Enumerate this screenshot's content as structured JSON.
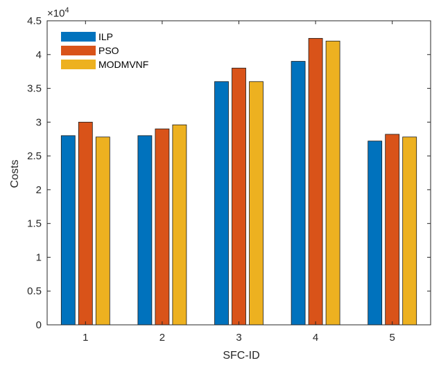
{
  "chart_data": {
    "type": "bar",
    "categories": [
      "1",
      "2",
      "3",
      "4",
      "5"
    ],
    "series": [
      {
        "name": "ILP",
        "values": [
          28000,
          28000,
          36000,
          39000,
          27200
        ],
        "color": "#0072BD"
      },
      {
        "name": "PSO",
        "values": [
          30000,
          29000,
          38000,
          42400,
          28200
        ],
        "color": "#D95319"
      },
      {
        "name": "MODMVNF",
        "values": [
          27800,
          29600,
          36000,
          42000,
          27800
        ],
        "color": "#EDB120"
      }
    ],
    "xlabel": "SFC-ID",
    "ylabel": "Costs",
    "ylim": [
      0,
      45000
    ],
    "yticks": [
      0,
      5000,
      10000,
      15000,
      20000,
      25000,
      30000,
      35000,
      40000,
      45000
    ],
    "ytick_labels": [
      "0",
      "0.5",
      "1",
      "1.5",
      "2",
      "2.5",
      "3",
      "3.5",
      "4",
      "4.5"
    ],
    "y_exponent_base": "×10",
    "y_exponent_power": "4",
    "legend_position": "top-left",
    "grid": false
  }
}
